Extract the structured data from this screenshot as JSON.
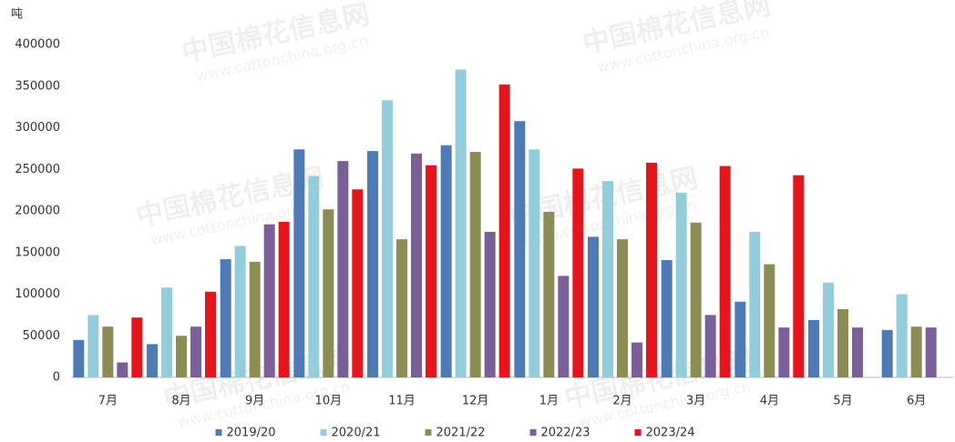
{
  "chart_data": {
    "type": "bar",
    "unit": "吨",
    "watermark": [
      "中国棉花信息网",
      "www.cottonchina.org.cn"
    ],
    "categories": [
      "7月",
      "8月",
      "9月",
      "10月",
      "11月",
      "12月",
      "1月",
      "2月",
      "3月",
      "4月",
      "5月",
      "6月"
    ],
    "series": [
      {
        "name": "2019/20",
        "color": "#4e7ab5",
        "values": [
          45000,
          40000,
          142000,
          274000,
          272000,
          279000,
          308000,
          169000,
          141000,
          91000,
          69000,
          57000
        ]
      },
      {
        "name": "2020/21",
        "color": "#92cddc",
        "values": [
          75000,
          108000,
          158000,
          242000,
          333000,
          370000,
          274000,
          236000,
          222000,
          175000,
          114000,
          100000
        ]
      },
      {
        "name": "2021/22",
        "color": "#8c8c55",
        "values": [
          61000,
          50000,
          139000,
          202000,
          166000,
          271000,
          199000,
          166000,
          186000,
          136000,
          82000,
          61000
        ]
      },
      {
        "name": "2022/23",
        "color": "#7a5f99",
        "values": [
          18000,
          61000,
          184000,
          260000,
          269000,
          175000,
          122000,
          42000,
          75000,
          60000,
          60000,
          60000
        ]
      },
      {
        "name": "2023/24",
        "color": "#e8141b",
        "values": [
          72000,
          103000,
          187000,
          226000,
          255000,
          352000,
          251000,
          258000,
          254000,
          243000,
          null,
          null
        ]
      }
    ],
    "ylim": [
      0,
      400000
    ],
    "yticks": [
      0,
      50000,
      100000,
      150000,
      200000,
      250000,
      300000,
      350000,
      400000
    ],
    "grid": false,
    "legend": "bottom"
  }
}
